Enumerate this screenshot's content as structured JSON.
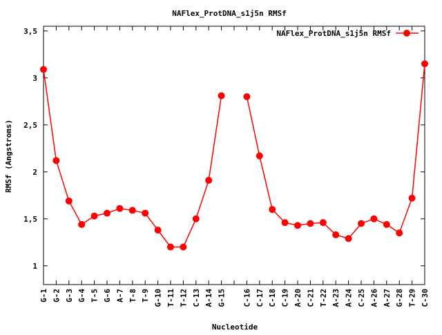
{
  "chart_data": {
    "type": "line",
    "title": "NAFlex_ProtDNA_s1j5n RMSf",
    "xlabel": "Nucleotide",
    "ylabel": "RMSf (Angstroms)",
    "ylim": [
      0.8,
      3.55
    ],
    "y_ticks": [
      "1",
      "1,5",
      "2",
      "2,5",
      "3",
      "3,5"
    ],
    "y_tick_values": [
      1,
      1.5,
      2,
      2.5,
      3,
      3.5
    ],
    "legend_position": "top-right",
    "grid": false,
    "categories": [
      "G-1",
      "G-2",
      "G-3",
      "G-4",
      "T-5",
      "G-6",
      "A-7",
      "T-8",
      "T-9",
      "G-10",
      "T-11",
      "T-12",
      "C-13",
      "A-14",
      "G-15",
      "",
      "C-16",
      "C-17",
      "C-18",
      "C-19",
      "A-20",
      "C-21",
      "T-22",
      "A-23",
      "A-24",
      "C-25",
      "A-26",
      "A-27",
      "G-28",
      "T-29",
      "C-30"
    ],
    "series": [
      {
        "name": "NAFlex_ProtDNA_s1j5n RMSf",
        "color": "#ff0000",
        "values": [
          3.09,
          2.12,
          1.69,
          1.44,
          1.53,
          1.56,
          1.61,
          1.59,
          1.56,
          1.38,
          1.2,
          1.2,
          1.5,
          1.91,
          2.81,
          null,
          2.8,
          2.17,
          1.6,
          1.46,
          1.43,
          1.45,
          1.46,
          1.33,
          1.29,
          1.45,
          1.5,
          1.44,
          1.35,
          1.72,
          3.15
        ]
      }
    ]
  }
}
